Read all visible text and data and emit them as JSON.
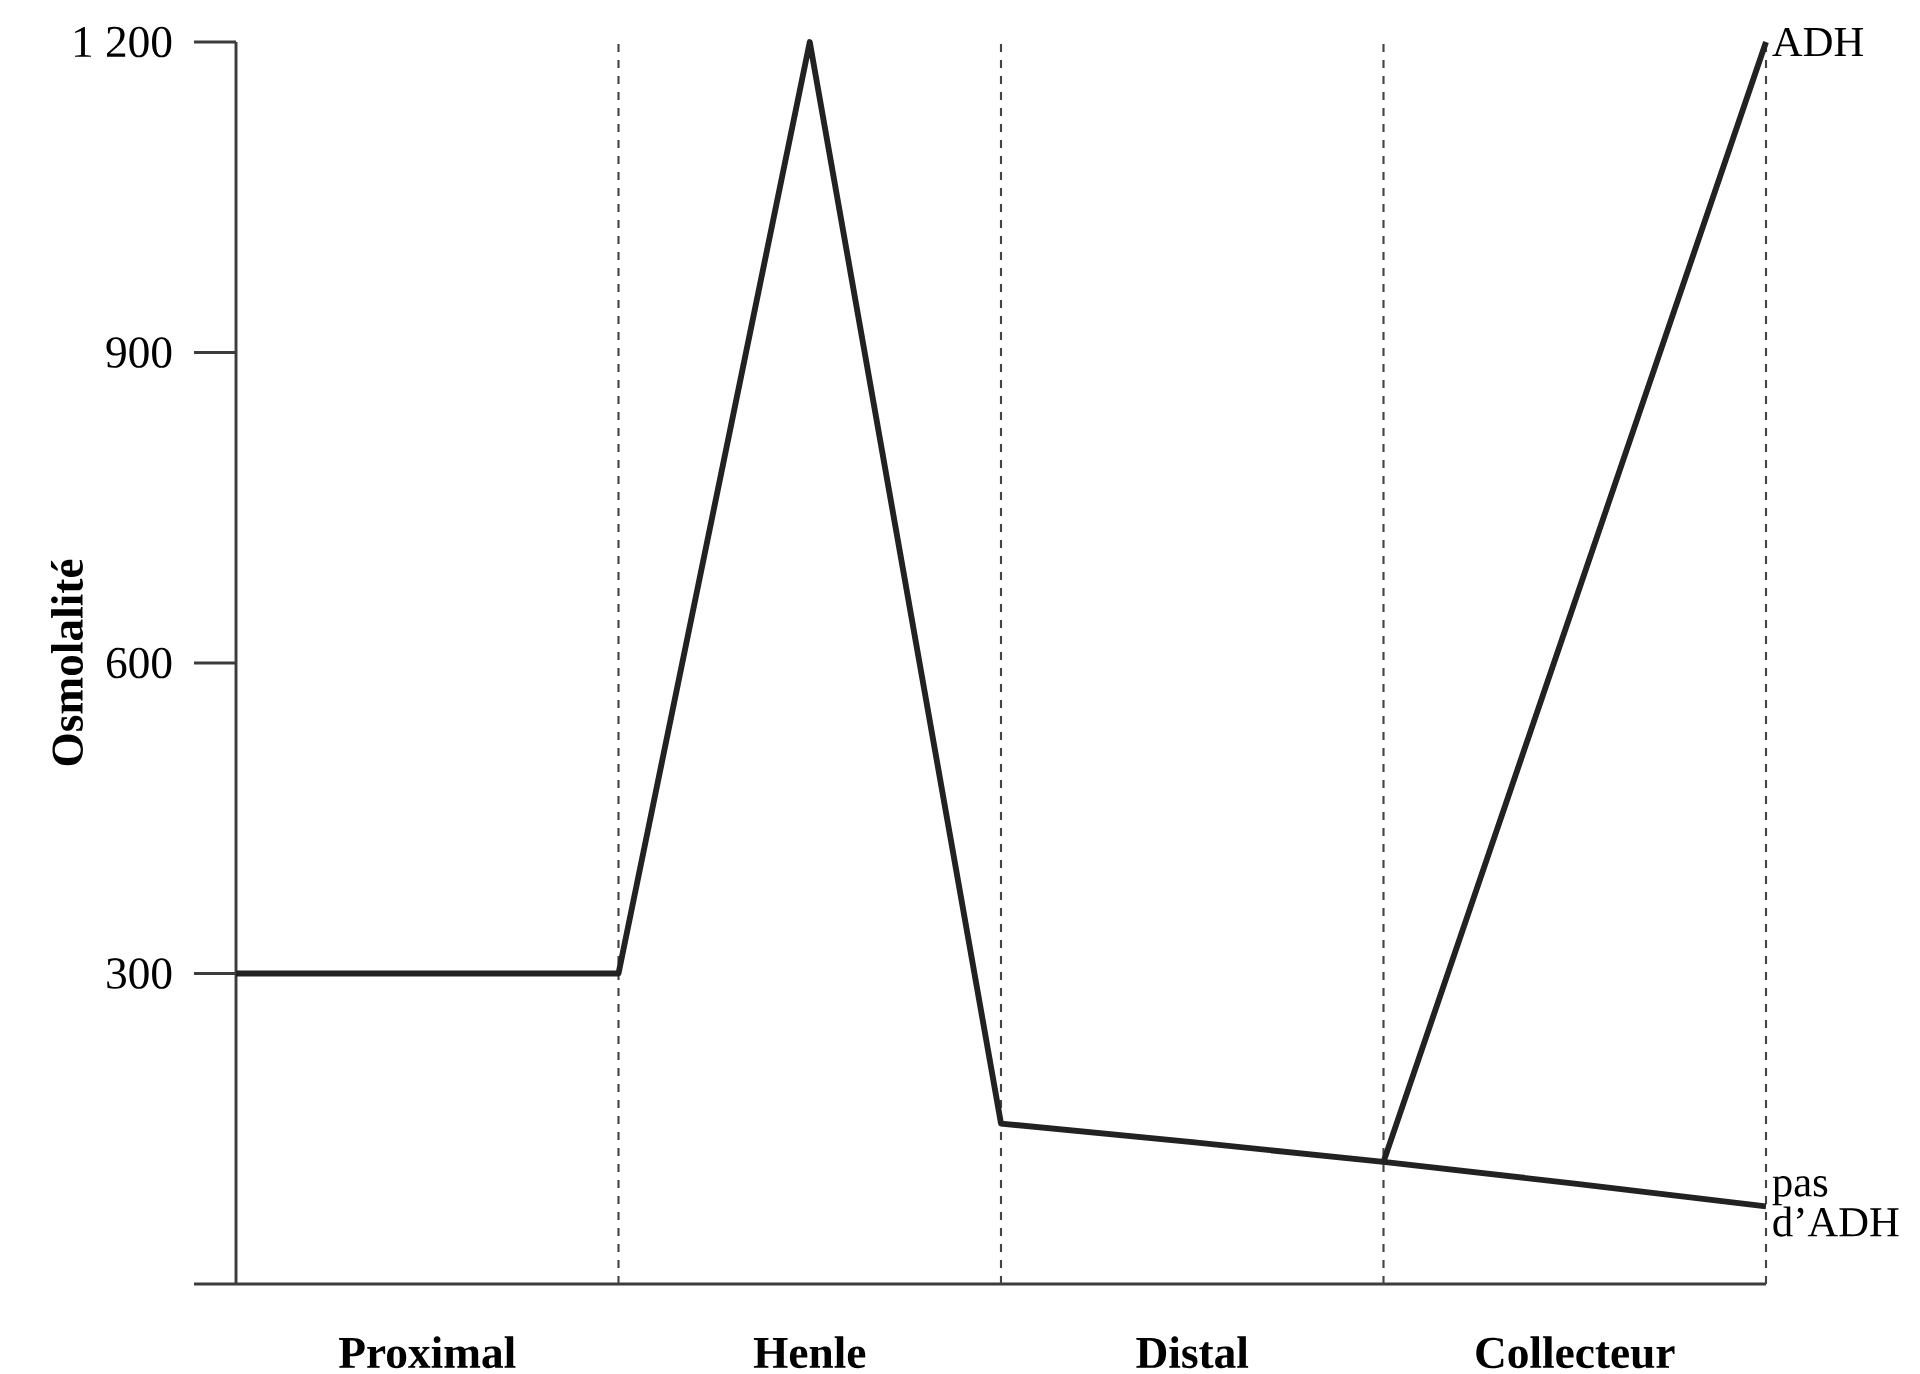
{
  "chart_data": {
    "type": "line",
    "ylabel": "Osmolalité",
    "categories": [
      null,
      "Proximal",
      null,
      "Henle",
      null,
      "Distal",
      null,
      "Collecteur",
      null
    ],
    "ylim": [
      0,
      1200
    ],
    "yticks": [
      {
        "value": 0,
        "label": null
      },
      {
        "value": 300,
        "label": "300"
      },
      {
        "value": 600,
        "label": "600"
      },
      {
        "value": 900,
        "label": "900"
      },
      {
        "value": 1200,
        "label": "1 200"
      }
    ],
    "series": [
      {
        "name": "pas d’ADH",
        "color": "#222222",
        "values": [
          300,
          300,
          300,
          1200,
          155,
          137,
          118,
          97,
          75
        ]
      },
      {
        "name": "ADH",
        "color": "#222222",
        "values": [
          null,
          null,
          null,
          null,
          null,
          null,
          118,
          659,
          1200
        ]
      }
    ],
    "marker": "none",
    "line_style": "solid",
    "grid": "x",
    "legend": false
  }
}
